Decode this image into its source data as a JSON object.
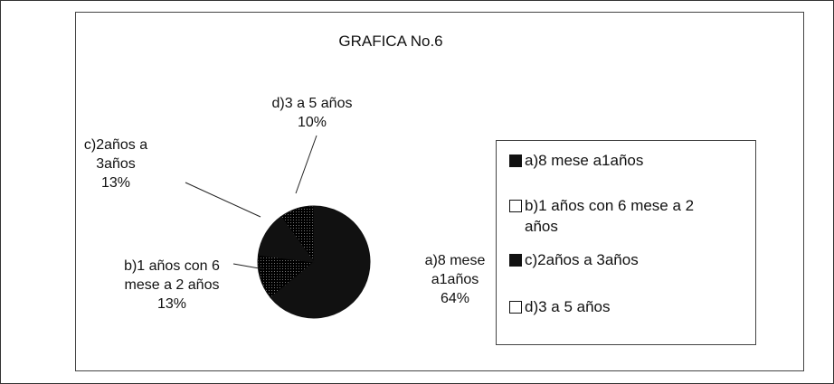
{
  "chart_data": {
    "type": "pie",
    "title": "GRAFICA No.6",
    "categories": [
      "a)8 mese a1años",
      "b)1 años con 6 mese a 2 años",
      "c)2años a 3años",
      "d)3 a 5 años"
    ],
    "values": [
      64,
      13,
      13,
      10
    ],
    "value_labels": [
      "64%",
      "13%",
      "13%",
      "10%"
    ],
    "colors": [
      "#111111",
      "#f4f4f4",
      "#111111",
      "#d6d6d6"
    ],
    "legend": "right"
  }
}
